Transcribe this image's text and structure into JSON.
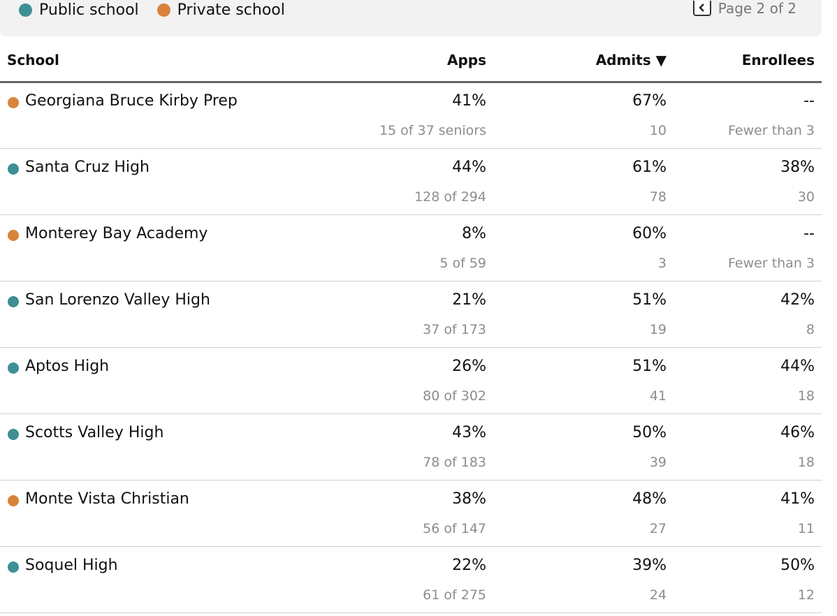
{
  "colors": {
    "public": "#3e8e96",
    "private": "#d9833a"
  },
  "legend": [
    {
      "label": "Public school",
      "type": "public"
    },
    {
      "label": "Private school",
      "type": "private"
    }
  ],
  "pager": {
    "label": "Page 2 of 2",
    "prev_icon": "chevron-left-icon"
  },
  "columns": {
    "school": "School",
    "apps": "Apps",
    "admits": "Admits ▼",
    "enrollees": "Enrollees"
  },
  "rows": [
    {
      "type": "private",
      "school": "Georgiana Bruce Kirby Prep",
      "apps_pct": "41%",
      "apps_sub": "15 of 37 seniors",
      "admits_pct": "67%",
      "admits_sub": "10",
      "enr_pct": "--",
      "enr_sub": "Fewer than 3"
    },
    {
      "type": "public",
      "school": "Santa Cruz High",
      "apps_pct": "44%",
      "apps_sub": "128 of 294",
      "admits_pct": "61%",
      "admits_sub": "78",
      "enr_pct": "38%",
      "enr_sub": "30"
    },
    {
      "type": "private",
      "school": "Monterey Bay Academy",
      "apps_pct": "8%",
      "apps_sub": "5 of 59",
      "admits_pct": "60%",
      "admits_sub": "3",
      "enr_pct": "--",
      "enr_sub": "Fewer than 3"
    },
    {
      "type": "public",
      "school": "San Lorenzo Valley High",
      "apps_pct": "21%",
      "apps_sub": "37 of 173",
      "admits_pct": "51%",
      "admits_sub": "19",
      "enr_pct": "42%",
      "enr_sub": "8"
    },
    {
      "type": "public",
      "school": "Aptos High",
      "apps_pct": "26%",
      "apps_sub": "80 of 302",
      "admits_pct": "51%",
      "admits_sub": "41",
      "enr_pct": "44%",
      "enr_sub": "18"
    },
    {
      "type": "public",
      "school": "Scotts Valley High",
      "apps_pct": "43%",
      "apps_sub": "78 of 183",
      "admits_pct": "50%",
      "admits_sub": "39",
      "enr_pct": "46%",
      "enr_sub": "18"
    },
    {
      "type": "private",
      "school": "Monte Vista Christian",
      "apps_pct": "38%",
      "apps_sub": "56 of 147",
      "admits_pct": "48%",
      "admits_sub": "27",
      "enr_pct": "41%",
      "enr_sub": "11"
    },
    {
      "type": "public",
      "school": "Soquel High",
      "apps_pct": "22%",
      "apps_sub": "61 of 275",
      "admits_pct": "39%",
      "admits_sub": "24",
      "enr_pct": "50%",
      "enr_sub": "12"
    }
  ]
}
